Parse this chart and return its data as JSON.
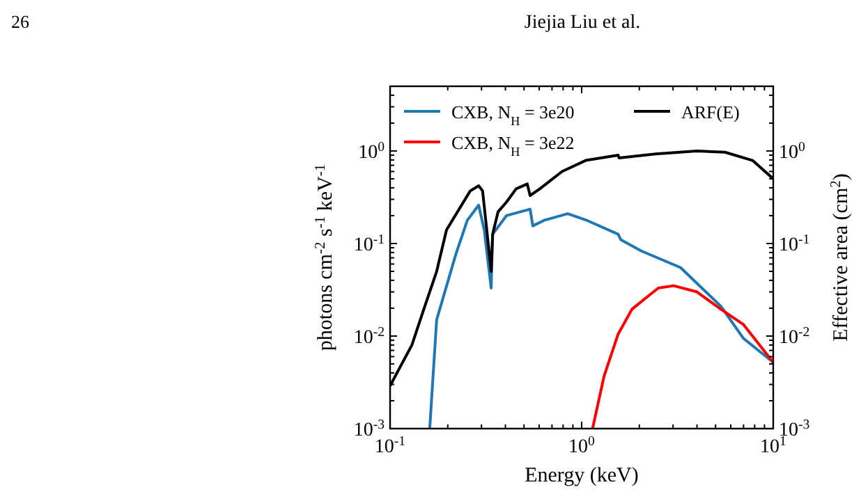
{
  "chart_data": {
    "type": "line",
    "xlabel": "Energy (keV)",
    "ylabel": "photons cm$^{-2}$ s$^{-1}$ keV$^{-1}$",
    "y2label": "Effective area (cm$^{2}$)",
    "annotations": [
      "26",
      "Jiejia Liu et al."
    ],
    "log": "xy",
    "xlim": [
      0.1,
      10
    ],
    "ylim": [
      0.001,
      5
    ],
    "xticks": [
      {
        "value": 0.1,
        "label": "10$^{-1}$"
      },
      {
        "value": 1,
        "label": "10$^{0}$"
      },
      {
        "value": 10,
        "label": "10$^{1}$"
      }
    ],
    "yticks": [
      {
        "value": 0.001,
        "label": "10$^{-3}$"
      },
      {
        "value": 0.01,
        "label": "10$^{-2}$"
      },
      {
        "value": 0.1,
        "label": "10$^{-1}$"
      },
      {
        "value": 1,
        "label": "10$^{0}$"
      }
    ],
    "legend": "top",
    "grid": false,
    "marker": "none",
    "line_style": "solid",
    "series": [
      {
        "name": "CXB, N$_{H}$ = 3e20",
        "color": "#1f77b4",
        "x": [
          0.161,
          0.175,
          0.221,
          0.253,
          0.29,
          0.31,
          0.337,
          0.343,
          0.405,
          0.538,
          0.556,
          0.636,
          0.846,
          1.05,
          1.55,
          1.6,
          2.05,
          3.28,
          5.33,
          6.97,
          10
        ],
        "values": [
          0.001,
          0.015,
          0.078,
          0.178,
          0.26,
          0.14,
          0.033,
          0.126,
          0.2,
          0.235,
          0.155,
          0.178,
          0.21,
          0.18,
          0.126,
          0.11,
          0.083,
          0.055,
          0.021,
          0.0095,
          0.0052
        ]
      },
      {
        "name": "CXB, N$_{H}$ = 3e22",
        "color": "#ff0000",
        "x": [
          1.14,
          1.31,
          1.55,
          1.83,
          2.51,
          3.02,
          4.0,
          5.33,
          6.97,
          10
        ],
        "values": [
          0.001,
          0.0037,
          0.0105,
          0.0195,
          0.033,
          0.035,
          0.03,
          0.0195,
          0.0134,
          0.0052
        ]
      },
      {
        "name": "ARF(E)",
        "color": "#000000",
        "x": [
          0.1,
          0.112,
          0.13,
          0.148,
          0.175,
          0.197,
          0.262,
          0.29,
          0.304,
          0.337,
          0.343,
          0.366,
          0.405,
          0.455,
          0.52,
          0.538,
          0.605,
          0.79,
          1.05,
          1.55,
          1.57,
          2.43,
          4.0,
          5.6,
          7.8,
          10
        ],
        "values": [
          0.0029,
          0.0045,
          0.008,
          0.018,
          0.05,
          0.14,
          0.37,
          0.42,
          0.37,
          0.05,
          0.126,
          0.22,
          0.28,
          0.39,
          0.44,
          0.33,
          0.39,
          0.6,
          0.79,
          0.9,
          0.84,
          0.93,
          1.0,
          0.97,
          0.79,
          0.5
        ]
      }
    ]
  }
}
